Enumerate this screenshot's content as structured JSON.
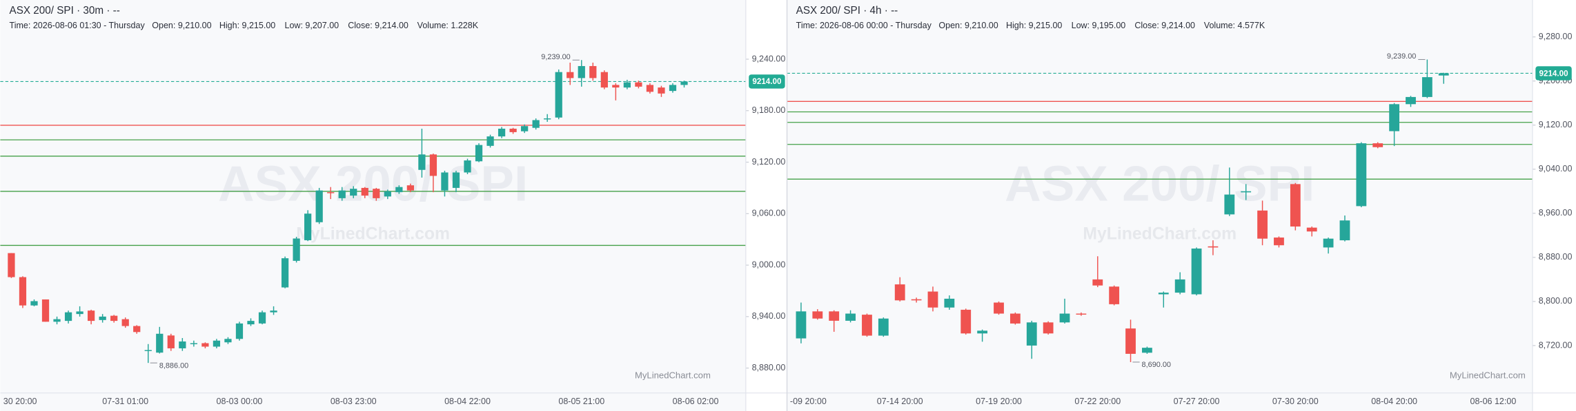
{
  "chart_data": [
    {
      "type": "candlestick",
      "title": "ASX 200/ SPI · 30m · --",
      "info": [
        "Time: 2026-08-06 01:30 - Thursday",
        "Open: 9,210.00",
        "High: 9,215.00",
        "Low: 9,207.00",
        "Close: 9,214.00",
        "Volume: 1.228K"
      ],
      "watermark": "ASX 200/ SPI",
      "brand": "MyLinedChart.com",
      "up_color": "#26a69a",
      "down_color": "#ef5350",
      "categories": [
        "30 20:00",
        null,
        null,
        null,
        null,
        null,
        null,
        null,
        null,
        null,
        "07-31 01:00",
        null,
        null,
        null,
        null,
        null,
        null,
        null,
        null,
        null,
        "08-03 00:00",
        null,
        null,
        null,
        null,
        null,
        null,
        null,
        null,
        null,
        "08-03 23:00",
        null,
        null,
        null,
        null,
        null,
        null,
        null,
        null,
        null,
        "08-04 22:00",
        null,
        null,
        null,
        null,
        null,
        null,
        null,
        null,
        null,
        "08-05 21:00",
        null,
        null,
        null,
        null,
        null,
        null,
        null,
        null,
        null,
        "08-06 02:00"
      ],
      "open": [
        9014,
        8986,
        8953,
        8960,
        8934,
        8935,
        8943,
        8947,
        8936,
        8941,
        8937,
        8929,
        8900,
        8898,
        8918,
        8903,
        8908,
        8909,
        8905,
        8910,
        8914,
        8931,
        8932,
        8945,
        8974,
        9005,
        9029,
        9050,
        9085,
        9078,
        9081,
        9090,
        9089,
        9080,
        9085,
        9093,
        9111,
        9129,
        9087,
        9090,
        9108,
        9121,
        9139,
        9150,
        9159,
        9156,
        9160,
        9170,
        9172,
        9225,
        9218,
        9232,
        9225,
        9210,
        9207,
        9213,
        9210,
        9207,
        9203,
        9210,
        null
      ],
      "high": [
        9014,
        8987,
        8960,
        8960,
        8940,
        8947,
        8952,
        8948,
        8943,
        8942,
        8939,
        8930,
        8908,
        8928,
        8920,
        8915,
        8912,
        8910,
        8914,
        8916,
        8934,
        8938,
        8947,
        8952,
        9010,
        9033,
        9064,
        9090,
        9091,
        9091,
        9092,
        9091,
        9090,
        9088,
        9093,
        9095,
        9159,
        9130,
        9110,
        9110,
        9124,
        9142,
        9152,
        9161,
        9160,
        9164,
        9171,
        9176,
        9228,
        9236,
        9239,
        9236,
        9227,
        9212,
        9216,
        9215,
        9212,
        9209,
        9212,
        9215,
        null
      ],
      "low": [
        8985,
        8950,
        8952,
        8934,
        8931,
        8932,
        8940,
        8931,
        8933,
        8933,
        8927,
        8920,
        8886,
        8897,
        8900,
        8900,
        8905,
        8903,
        8903,
        8908,
        8912,
        8929,
        8931,
        8942,
        8973,
        9003,
        9028,
        9048,
        9077,
        9075,
        9078,
        9078,
        9075,
        9077,
        9083,
        9085,
        9102,
        9085,
        9080,
        9085,
        9106,
        9120,
        9137,
        9148,
        9153,
        9154,
        9158,
        9167,
        9170,
        9210,
        9208,
        9215,
        9205,
        9192,
        9205,
        9206,
        9200,
        9196,
        9201,
        9207,
        null
      ],
      "close": [
        8986,
        8953,
        8958,
        8934,
        8937,
        8945,
        8946,
        8935,
        8940,
        8935,
        8929,
        8922,
        8901,
        8920,
        8903,
        8911,
        8909,
        8905,
        8912,
        8914,
        8932,
        8935,
        8945,
        8947,
        9008,
        9031,
        9060,
        9087,
        9084,
        9087,
        9089,
        9081,
        9078,
        9086,
        9091,
        9087,
        9129,
        9104,
        9108,
        9108,
        9122,
        9140,
        9150,
        9159,
        9155,
        9162,
        9169,
        9171,
        9225,
        9218,
        9232,
        9218,
        9207,
        9207,
        9213,
        9208,
        9202,
        9200,
        9210,
        9214,
        null
      ],
      "high_label": "9,239.00",
      "low_label": "8,886.00",
      "last_price": {
        "value": 9214,
        "label": "9214.00",
        "color": "#22ab94"
      },
      "levels": [
        {
          "value": 9163,
          "color": "#ef5350"
        },
        {
          "value": 9146,
          "color": "#43a047"
        },
        {
          "value": 9127,
          "color": "#43a047"
        },
        {
          "value": 9086,
          "color": "#43a047"
        },
        {
          "value": 9023,
          "color": "#43a047"
        }
      ],
      "ylim": [
        8851,
        9309
      ],
      "yticks": [
        {
          "value": 8880,
          "label": "8,880.00"
        },
        {
          "value": 8940,
          "label": "8,940.00"
        },
        {
          "value": 9000,
          "label": "9,000.00"
        },
        {
          "value": 9060,
          "label": "9,060.00"
        },
        {
          "value": 9120,
          "label": "9,120.00"
        },
        {
          "value": 9180,
          "label": "9,180.00"
        },
        {
          "value": 9240,
          "label": "9,240.00"
        }
      ]
    },
    {
      "type": "candlestick",
      "title": "ASX 200/ SPI · 4h · --",
      "info": [
        "Time: 2026-08-06 00:00 - Thursday",
        "Open: 9,210.00",
        "High: 9,215.00",
        "Low: 9,195.00",
        "Close: 9,214.00",
        "Volume: 4.577K"
      ],
      "watermark": "ASX 200/ SPI",
      "brand": "MyLinedChart.com",
      "up_color": "#26a69a",
      "down_color": "#ef5350",
      "categories": [
        "-09 20:00",
        null,
        null,
        null,
        null,
        null,
        "07-14 20:00",
        null,
        null,
        null,
        null,
        null,
        "07-19 20:00",
        null,
        null,
        null,
        null,
        null,
        "07-22 20:00",
        null,
        null,
        null,
        null,
        null,
        "07-27 20:00",
        null,
        null,
        null,
        null,
        null,
        "07-30 20:00",
        null,
        null,
        null,
        null,
        null,
        "08-04 20:00",
        null,
        null,
        null,
        null,
        null,
        "08-06 12:00"
      ],
      "open": [
        8733,
        8782,
        8782,
        8765,
        8776,
        8738,
        8831,
        8804,
        8818,
        8789,
        8785,
        8742,
        8798,
        8778,
        8720,
        8762,
        8762,
        8778,
        8840,
        8827,
        8751,
        8707,
        8813,
        8816,
        8813,
        8900,
        8958,
        8998,
        8965,
        8916,
        9013,
        8934,
        8898,
        8911,
        8973,
        9087,
        9109,
        9158,
        9171,
        9210,
        null,
        null,
        null
      ],
      "high": [
        8798,
        8786,
        8784,
        8784,
        8778,
        8771,
        8844,
        8807,
        8827,
        8811,
        8787,
        8749,
        8800,
        8780,
        8765,
        8764,
        8805,
        8780,
        8882,
        8829,
        8767,
        8718,
        8818,
        8853,
        8898,
        8911,
        9043,
        9013,
        8983,
        8918,
        9015,
        8936,
        8916,
        8956,
        9089,
        9089,
        9160,
        9173,
        9239,
        9215,
        null,
        null,
        null
      ],
      "low": [
        8724,
        8767,
        8745,
        8762,
        8736,
        8736,
        8800,
        8798,
        8782,
        8785,
        8740,
        8727,
        8776,
        8758,
        8696,
        8740,
        8760,
        8774,
        8826,
        8793,
        8690,
        8705,
        8789,
        8813,
        8811,
        8884,
        8955,
        8984,
        8902,
        8898,
        8929,
        8918,
        8887,
        8909,
        8971,
        9078,
        9082,
        9153,
        9169,
        9195,
        null,
        null,
        null
      ],
      "close": [
        8782,
        8769,
        8765,
        8778,
        8738,
        8769,
        8802,
        8802,
        8789,
        8805,
        8742,
        8747,
        8778,
        8760,
        8762,
        8742,
        8778,
        8777,
        8829,
        8795,
        8705,
        8716,
        8816,
        8840,
        8896,
        8898,
        8994,
        9000,
        8914,
        8902,
        8936,
        8927,
        8914,
        8947,
        9087,
        9080,
        9158,
        9171,
        9207,
        9214,
        null,
        null,
        null
      ],
      "high_label": "9,239.00",
      "low_label": "8,690.00",
      "last_price": {
        "value": 9214,
        "label": "9214.00",
        "color": "#22ab94"
      },
      "levels": [
        {
          "value": 9163,
          "color": "#ef5350"
        },
        {
          "value": 9144,
          "color": "#43a047"
        },
        {
          "value": 9125,
          "color": "#43a047"
        },
        {
          "value": 9085,
          "color": "#43a047"
        },
        {
          "value": 9022,
          "color": "#43a047"
        }
      ],
      "ylim": [
        8634,
        9347
      ],
      "yticks": [
        {
          "value": 8720,
          "label": "8,720.00"
        },
        {
          "value": 8800,
          "label": "8,800.00"
        },
        {
          "value": 8880,
          "label": "8,880.00"
        },
        {
          "value": 8960,
          "label": "8,960.00"
        },
        {
          "value": 9040,
          "label": "9,040.00"
        },
        {
          "value": 9120,
          "label": "9,120.00"
        },
        {
          "value": 9200,
          "label": "9,200.00"
        },
        {
          "value": 9280,
          "label": "9,280.00"
        }
      ]
    }
  ]
}
